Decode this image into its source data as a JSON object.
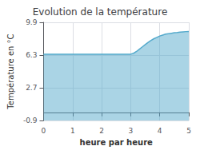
{
  "chart_data": {
    "type": "area",
    "title": "Evolution de la température",
    "xlabel": "heure par heure",
    "ylabel": "Température en °C",
    "color": "#55aacc",
    "x": [
      0.0,
      0.5,
      1.0,
      1.5,
      2.0,
      2.5,
      3.0,
      3.1,
      3.2,
      3.3,
      3.4,
      3.5,
      3.6,
      3.7,
      3.8,
      3.9,
      4.0,
      4.1,
      4.2,
      4.3,
      4.4,
      4.5,
      4.6,
      4.7,
      4.8,
      4.9,
      5.0
    ],
    "values": [
      6.4,
      6.4,
      6.4,
      6.4,
      6.4,
      6.4,
      6.4,
      6.5,
      6.7,
      6.95,
      7.2,
      7.45,
      7.7,
      7.92,
      8.1,
      8.25,
      8.4,
      8.5,
      8.6,
      8.65,
      8.7,
      8.75,
      8.78,
      8.82,
      8.85,
      8.88,
      8.9
    ],
    "xlim": [
      0,
      5
    ],
    "ylim": [
      -0.9,
      9.9
    ],
    "xticks": [
      0,
      1,
      2,
      3,
      4,
      5
    ],
    "yticks": [
      -0.9,
      2.7,
      6.3,
      9.9
    ],
    "grid": true
  }
}
